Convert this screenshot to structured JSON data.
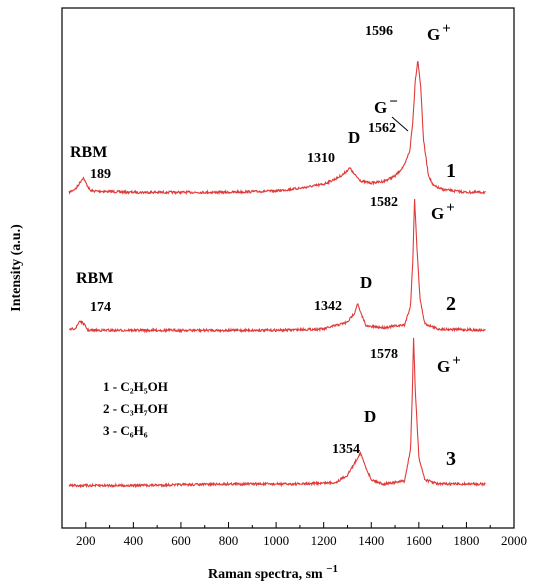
{
  "chart_data": {
    "type": "line",
    "xlabel": "Raman spectra, sm",
    "xlabel_sup": "−1",
    "ylabel": "Intensity (a.u.)",
    "xlim": [
      100,
      2000
    ],
    "xticks": [
      200,
      400,
      600,
      800,
      1000,
      1200,
      1400,
      1600,
      1800,
      2000
    ],
    "yticks_shown": false,
    "grid": false,
    "legend_position": "bottom-left",
    "legend": [
      {
        "num": "1",
        "text": "- C₂H₅OH"
      },
      {
        "num": "2",
        "text": "- C₃H₇OH"
      },
      {
        "num": "3",
        "text": "- C₆H₆"
      }
    ],
    "series": [
      {
        "label": "1",
        "color": "#e03a3a",
        "baseline": 0.0,
        "points": [
          [
            130,
            0.02
          ],
          [
            160,
            0.05
          ],
          [
            178,
            0.1
          ],
          [
            189,
            0.13
          ],
          [
            200,
            0.09
          ],
          [
            220,
            0.03
          ],
          [
            400,
            0.02
          ],
          [
            800,
            0.02
          ],
          [
            1000,
            0.03
          ],
          [
            1100,
            0.05
          ],
          [
            1200,
            0.08
          ],
          [
            1250,
            0.12
          ],
          [
            1280,
            0.15
          ],
          [
            1310,
            0.2
          ],
          [
            1330,
            0.15
          ],
          [
            1360,
            0.1
          ],
          [
            1400,
            0.09
          ],
          [
            1450,
            0.1
          ],
          [
            1500,
            0.14
          ],
          [
            1540,
            0.22
          ],
          [
            1562,
            0.33
          ],
          [
            1575,
            0.55
          ],
          [
            1585,
            0.85
          ],
          [
            1596,
            1.0
          ],
          [
            1608,
            0.8
          ],
          [
            1620,
            0.4
          ],
          [
            1640,
            0.15
          ],
          [
            1660,
            0.07
          ],
          [
            1700,
            0.04
          ],
          [
            1800,
            0.02
          ],
          [
            1880,
            0.02
          ]
        ],
        "annotations": [
          {
            "text": "RBM",
            "x": 189,
            "y": 0.55
          },
          {
            "text": "189",
            "x": 189,
            "y": 0.42
          },
          {
            "text": "1310",
            "x": 1310,
            "y": 0.38
          },
          {
            "text": "D",
            "x": 1310,
            "y": 0.52
          },
          {
            "text": "1562",
            "x": 1562,
            "y": 0.62
          },
          {
            "text": "G−",
            "x": 1562,
            "y": 0.78
          },
          {
            "text": "1596",
            "x": 1596,
            "y": 1.1
          },
          {
            "text": "G+",
            "x": 1596,
            "y": 1.1
          },
          {
            "text": "1",
            "x": 1700,
            "y": 0.4
          }
        ]
      },
      {
        "label": "2",
        "color": "#e03a3a",
        "baseline": 0.0,
        "points": [
          [
            130,
            0.02
          ],
          [
            160,
            0.04
          ],
          [
            174,
            0.09
          ],
          [
            190,
            0.07
          ],
          [
            210,
            0.02
          ],
          [
            600,
            0.02
          ],
          [
            1000,
            0.02
          ],
          [
            1200,
            0.03
          ],
          [
            1300,
            0.08
          ],
          [
            1330,
            0.15
          ],
          [
            1342,
            0.22
          ],
          [
            1355,
            0.15
          ],
          [
            1380,
            0.05
          ],
          [
            1450,
            0.04
          ],
          [
            1540,
            0.06
          ],
          [
            1565,
            0.2
          ],
          [
            1575,
            0.55
          ],
          [
            1582,
            1.0
          ],
          [
            1590,
            0.7
          ],
          [
            1605,
            0.25
          ],
          [
            1625,
            0.07
          ],
          [
            1680,
            0.03
          ],
          [
            1880,
            0.02
          ]
        ],
        "annotations": [
          {
            "text": "RBM",
            "x": 174,
            "y": 0.55
          },
          {
            "text": "174",
            "x": 174,
            "y": 0.3
          },
          {
            "text": "1342",
            "x": 1342,
            "y": 0.3
          },
          {
            "text": "D",
            "x": 1342,
            "y": 0.5
          },
          {
            "text": "1582",
            "x": 1582,
            "y": 1.1
          },
          {
            "text": "G+",
            "x": 1582,
            "y": 1.1
          },
          {
            "text": "2",
            "x": 1700,
            "y": 0.3
          }
        ]
      },
      {
        "label": "3",
        "color": "#e03a3a",
        "baseline": 0.0,
        "points": [
          [
            130,
            0.01
          ],
          [
            400,
            0.01
          ],
          [
            800,
            0.02
          ],
          [
            1100,
            0.02
          ],
          [
            1250,
            0.03
          ],
          [
            1300,
            0.08
          ],
          [
            1330,
            0.16
          ],
          [
            1354,
            0.23
          ],
          [
            1375,
            0.14
          ],
          [
            1400,
            0.05
          ],
          [
            1450,
            0.02
          ],
          [
            1540,
            0.04
          ],
          [
            1565,
            0.25
          ],
          [
            1572,
            0.6
          ],
          [
            1578,
            1.0
          ],
          [
            1585,
            0.65
          ],
          [
            1600,
            0.2
          ],
          [
            1625,
            0.05
          ],
          [
            1680,
            0.02
          ],
          [
            1880,
            0.02
          ]
        ],
        "annotations": [
          {
            "text": "1354",
            "x": 1354,
            "y": 0.3
          },
          {
            "text": "D",
            "x": 1354,
            "y": 0.48
          },
          {
            "text": "1578",
            "x": 1578,
            "y": 1.1
          },
          {
            "text": "G+",
            "x": 1578,
            "y": 1.1
          },
          {
            "text": "3",
            "x": 1700,
            "y": 0.15
          }
        ]
      }
    ]
  }
}
